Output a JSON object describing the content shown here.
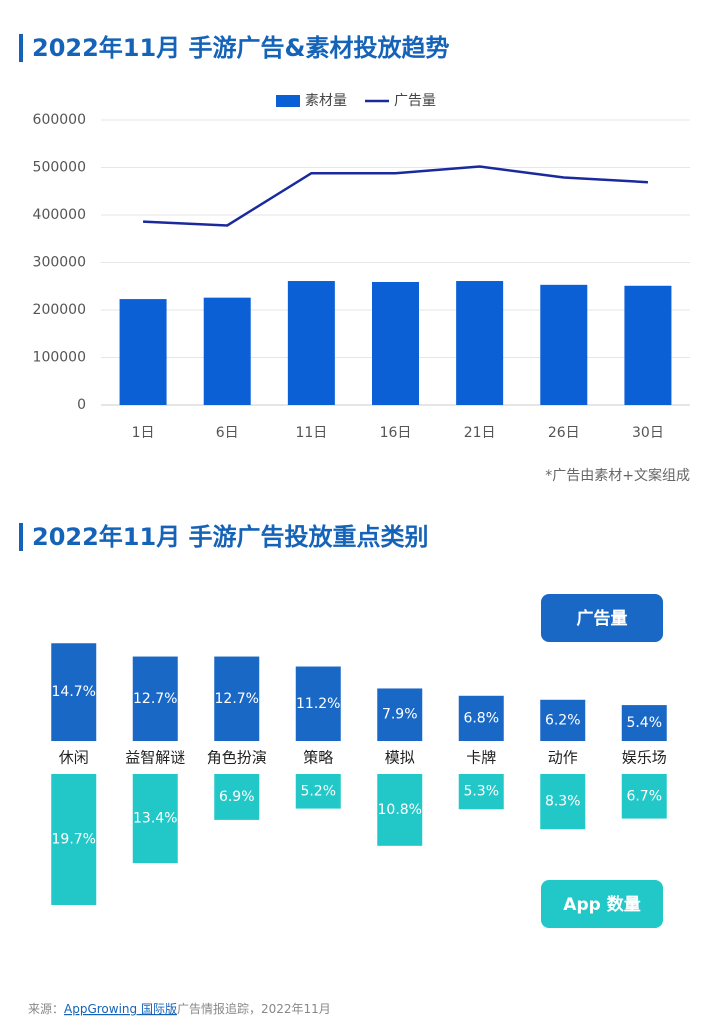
{
  "chart_data": [
    {
      "type": "bar",
      "title": "2022年11月 手游广告&素材投放趋势",
      "note": "*广告由素材+文案组成",
      "categories": [
        "1日",
        "6日",
        "11日",
        "16日",
        "21日",
        "26日",
        "30日"
      ],
      "series": [
        {
          "name": "素材量",
          "type": "bar",
          "color": "#0b60d6",
          "values": [
            223000,
            226000,
            261000,
            259000,
            261000,
            253000,
            251000
          ]
        },
        {
          "name": "广告量",
          "type": "line",
          "color": "#1a2a9c",
          "values": [
            386000,
            378000,
            488000,
            488000,
            502000,
            479000,
            469000
          ]
        }
      ],
      "ylim": [
        0,
        600000
      ],
      "yticks": [
        0,
        100000,
        200000,
        300000,
        400000,
        500000,
        600000
      ],
      "grid": true
    },
    {
      "type": "diverging-bar",
      "title": "2022年11月 手游广告投放重点类别",
      "categories": [
        "休闲",
        "益智解谜",
        "角色扮演",
        "策略",
        "模拟",
        "卡牌",
        "动作",
        "娱乐场"
      ],
      "series": [
        {
          "name": "广告量",
          "color": "#1a68c6",
          "values": [
            14.7,
            12.7,
            12.7,
            11.2,
            7.9,
            6.8,
            6.2,
            5.4
          ],
          "value_labels": [
            "14.7%",
            "12.7%",
            "12.7%",
            "11.2%",
            "7.9%",
            "6.8%",
            "6.2%",
            "5.4%"
          ]
        },
        {
          "name": "App 数量",
          "color": "#22c8c8",
          "values": [
            19.7,
            13.4,
            6.9,
            5.2,
            10.8,
            5.3,
            8.3,
            6.7
          ],
          "value_labels": [
            "19.7%",
            "13.4%",
            "6.9%",
            "5.2%",
            "10.8%",
            "5.3%",
            "8.3%",
            "6.7%"
          ]
        }
      ]
    }
  ],
  "footer": {
    "prefix": "来源：",
    "link": "AppGrowing 国际版",
    "suffix": "广告情报追踪，2022年11月"
  }
}
